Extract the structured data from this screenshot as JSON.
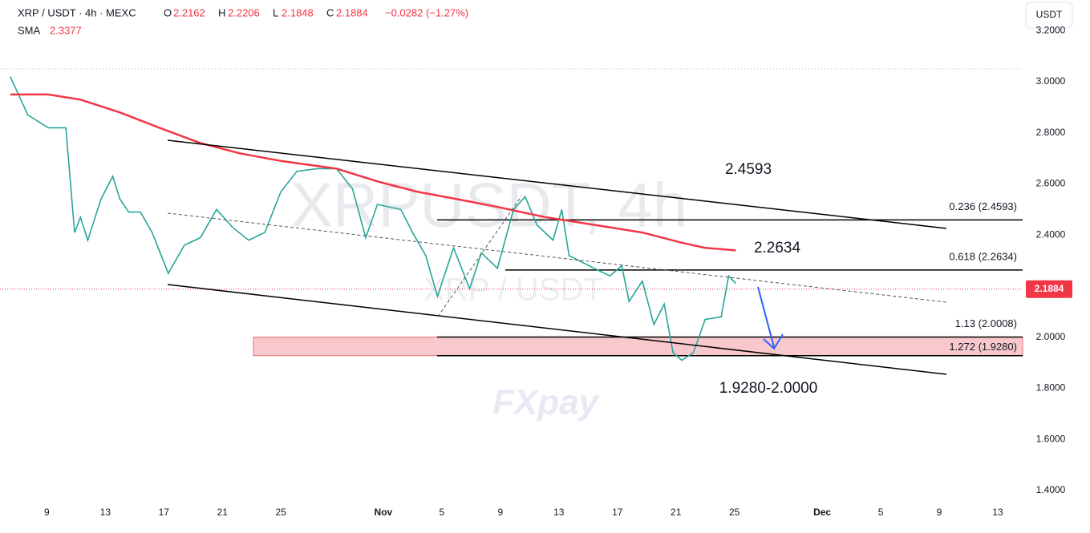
{
  "header": {
    "symbol": "XRP / USDT · 4h · MEXC",
    "open_label": "O",
    "open": "2.2162",
    "high_label": "H",
    "high": "2.2206",
    "low_label": "L",
    "low": "2.1848",
    "close_label": "C",
    "close": "2.1884",
    "change": "−0.0282 (−1.27%)",
    "sma_label": "SMA",
    "sma_value": "2.3377",
    "currency": "USDT"
  },
  "watermark": {
    "symbol": "XRPUSDT, 4h",
    "pair": "XRP / USDT",
    "logo": "FXpay"
  },
  "chart_data": {
    "type": "line",
    "xlim": [
      5.8,
      75.7
    ],
    "ylim": [
      1.35,
      3.32
    ],
    "xticks": [
      {
        "value": 9,
        "label": "9"
      },
      {
        "value": 13,
        "label": "13"
      },
      {
        "value": 17,
        "label": "17"
      },
      {
        "value": 21,
        "label": "21"
      },
      {
        "value": 25,
        "label": "25"
      },
      {
        "value": 32,
        "label": "Nov"
      },
      {
        "value": 36,
        "label": "5"
      },
      {
        "value": 40,
        "label": "9"
      },
      {
        "value": 44,
        "label": "13"
      },
      {
        "value": 48,
        "label": "17"
      },
      {
        "value": 52,
        "label": "21"
      },
      {
        "value": 56,
        "label": "25"
      },
      {
        "value": 62,
        "label": "Dec"
      },
      {
        "value": 66,
        "label": "5"
      },
      {
        "value": 70,
        "label": "9"
      },
      {
        "value": 74,
        "label": "13"
      }
    ],
    "yticks": [
      {
        "value": 1.4,
        "label": "1.4000"
      },
      {
        "value": 1.6,
        "label": "1.6000"
      },
      {
        "value": 1.8,
        "label": "1.8000"
      },
      {
        "value": 2.0,
        "label": "2.0000"
      },
      {
        "value": 2.2,
        "label": "2.2000"
      },
      {
        "value": 2.4,
        "label": "2.4000"
      },
      {
        "value": 2.6,
        "label": "2.6000"
      },
      {
        "value": 2.8,
        "label": "2.8000"
      },
      {
        "value": 3.0,
        "label": "3.0000"
      },
      {
        "value": 3.2,
        "label": "3.2000"
      }
    ],
    "series": [
      {
        "color": "#26a69a",
        "x": [
          6.5,
          7.7,
          9.1,
          10.3,
          10.9,
          11.3,
          11.8,
          12.7,
          13.5,
          14.0,
          14.6,
          15.4,
          16.2,
          17.3,
          18.4,
          19.5,
          20.6,
          21.7,
          22.8,
          23.9,
          25.0,
          26.1,
          27.5,
          28.8,
          29.9,
          30.8,
          31.6,
          33.2,
          34.0,
          34.9,
          35.7,
          36.8,
          37.9,
          38.7,
          39.8,
          40.9,
          41.7,
          42.5,
          43.6,
          44.2,
          44.7,
          46.4,
          47.5,
          48.3,
          48.8,
          49.7,
          50.5,
          51.2,
          51.8,
          52.4,
          53.2,
          54.0,
          55.1,
          55.6,
          56.1
        ],
        "values": [
          3.02,
          2.87,
          2.82,
          2.82,
          2.41,
          2.47,
          2.38,
          2.54,
          2.63,
          2.54,
          2.49,
          2.49,
          2.41,
          2.25,
          2.36,
          2.39,
          2.5,
          2.43,
          2.38,
          2.41,
          2.57,
          2.65,
          2.66,
          2.66,
          2.58,
          2.39,
          2.52,
          2.5,
          2.41,
          2.32,
          2.16,
          2.35,
          2.19,
          2.33,
          2.27,
          2.5,
          2.55,
          2.44,
          2.38,
          2.5,
          2.32,
          2.27,
          2.24,
          2.28,
          2.14,
          2.22,
          2.05,
          2.13,
          1.94,
          1.91,
          1.94,
          2.07,
          2.08,
          2.24,
          2.21
        ]
      },
      {
        "color": "#f23645",
        "x": [
          6.5,
          9.1,
          11.3,
          14.0,
          16.7,
          19.5,
          22.2,
          25.0,
          28.8,
          31.6,
          34.3,
          37.1,
          39.8,
          43.1,
          46.4,
          49.7,
          52.4,
          54.0,
          56.1
        ],
        "values": [
          2.95,
          2.95,
          2.93,
          2.88,
          2.82,
          2.76,
          2.72,
          2.69,
          2.66,
          2.61,
          2.57,
          2.54,
          2.51,
          2.47,
          2.44,
          2.41,
          2.37,
          2.35,
          2.34
        ]
      }
    ],
    "last_price": {
      "value": 2.1884,
      "label": "2.1884",
      "color": "#f23645"
    },
    "levels": [
      {
        "label": "0.236 (2.4593)",
        "value": 2.4593
      },
      {
        "label": "0.618 (2.2634)",
        "value": 2.2634
      },
      {
        "label": "1.13 (2.0008)",
        "value": 2.0008
      },
      {
        "label": "1.272 (1.9280)",
        "value": 1.928
      }
    ],
    "zone_color": "#f8c8cc",
    "annotations": [
      "2.4593",
      "2.2634",
      "1.9280-2.0000"
    ]
  }
}
